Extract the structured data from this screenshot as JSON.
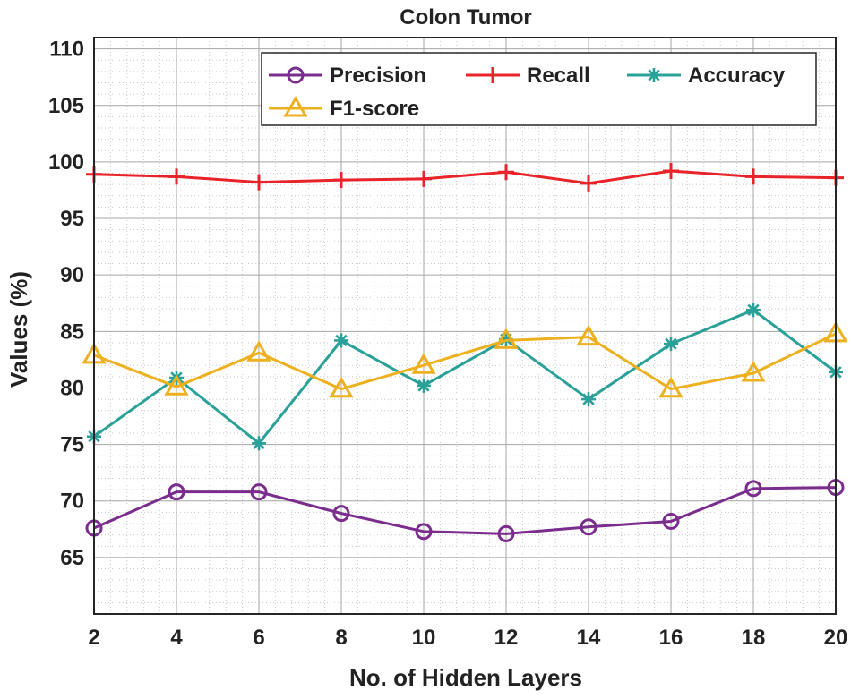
{
  "chart_data": {
    "type": "line",
    "title": "Colon Tumor",
    "xlabel": "No. of Hidden Layers",
    "ylabel": "Values (%)",
    "x": [
      2,
      4,
      6,
      8,
      10,
      12,
      14,
      16,
      18,
      20
    ],
    "xlim": [
      2,
      20
    ],
    "ylim": [
      60,
      111
    ],
    "xticks": [
      "2",
      "4",
      "6",
      "8",
      "10",
      "12",
      "14",
      "16",
      "18",
      "20"
    ],
    "yticks": [
      "65",
      "70",
      "75",
      "80",
      "85",
      "90",
      "95",
      "100",
      "105",
      "110"
    ],
    "grid": true,
    "minor_grid": true,
    "legend_position": "top-right",
    "series": [
      {
        "name": "Precision",
        "color": "#7B2D8E",
        "marker": "circle",
        "values": [
          67.6,
          70.8,
          70.8,
          68.9,
          67.3,
          67.1,
          67.7,
          68.2,
          71.1,
          71.2
        ]
      },
      {
        "name": "Recall",
        "color": "#E8232A",
        "marker": "plus",
        "values": [
          98.9,
          98.7,
          98.2,
          98.4,
          98.5,
          99.1,
          98.1,
          99.2,
          98.7,
          98.6
        ]
      },
      {
        "name": "Accuracy",
        "color": "#2AA198",
        "marker": "asterisk",
        "values": [
          75.7,
          80.9,
          75.1,
          84.2,
          80.2,
          84.3,
          79.0,
          83.9,
          86.9,
          81.4
        ]
      },
      {
        "name": "F1-score",
        "color": "#EDB120",
        "marker": "triangle",
        "values": [
          82.9,
          80.1,
          83.1,
          79.9,
          82.0,
          84.2,
          84.5,
          79.9,
          81.3,
          84.8
        ]
      }
    ]
  }
}
